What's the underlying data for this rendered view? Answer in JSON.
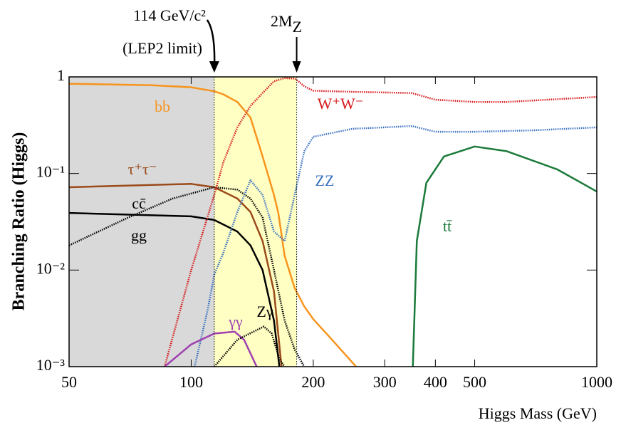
{
  "chart_data": {
    "type": "line",
    "xlabel": "Higgs Mass (GeV)",
    "ylabel": "Branching Ratio (Higgs)",
    "xscale": "log",
    "yscale": "log",
    "xlim": [
      50,
      1000
    ],
    "ylim": [
      0.001,
      1
    ],
    "xticks": [
      50,
      100,
      200,
      300,
      400,
      500,
      1000
    ],
    "yticks": [
      {
        "value": 1,
        "label": "1"
      },
      {
        "value": 0.1,
        "label": "10⁻¹"
      },
      {
        "value": 0.01,
        "label": "10⁻²"
      },
      {
        "value": 0.001,
        "label": "10⁻³"
      }
    ],
    "regions": [
      {
        "x": [
          50,
          114
        ],
        "color": "#d9d9d9"
      },
      {
        "x": [
          114,
          182
        ],
        "color": "#ffffc4"
      }
    ],
    "annotations": [
      {
        "lines": [
          "114 GeV/c²",
          "(LEP2 limit)"
        ],
        "x": 114
      },
      {
        "text": "2M",
        "subscript": "Z",
        "x": 182
      }
    ],
    "series": [
      {
        "name": "bb",
        "color": "#f7941d",
        "dash": "solid",
        "x": [
          50,
          80,
          100,
          114,
          120,
          130,
          140,
          150,
          160,
          164,
          170,
          180,
          190,
          200,
          220,
          255
        ],
        "values": [
          0.85,
          0.82,
          0.78,
          0.71,
          0.66,
          0.55,
          0.38,
          0.15,
          0.06,
          0.039,
          0.014,
          0.0065,
          0.0042,
          0.0031,
          0.002,
          0.001
        ]
      },
      {
        "name": "τ⁺τ⁻",
        "color": "#9b4a1a",
        "dash": "solid",
        "x": [
          50,
          100,
          114,
          130,
          140,
          150,
          160,
          167
        ],
        "values": [
          0.072,
          0.078,
          0.072,
          0.055,
          0.04,
          0.02,
          0.006,
          0.001
        ]
      },
      {
        "name": "cc̄",
        "color": "#000000",
        "dash": "solid",
        "x": [
          50,
          100,
          114,
          130,
          140,
          150,
          160,
          165
        ],
        "values": [
          0.039,
          0.036,
          0.033,
          0.025,
          0.018,
          0.01,
          0.003,
          0.001
        ]
      },
      {
        "name": "gg",
        "color": "#000000",
        "dash": "dotted",
        "x": [
          50,
          70,
          90,
          114,
          130,
          140,
          150,
          160,
          170,
          180,
          190
        ],
        "values": [
          0.018,
          0.035,
          0.055,
          0.072,
          0.068,
          0.055,
          0.035,
          0.01,
          0.003,
          0.0015,
          0.001
        ]
      },
      {
        "name": "W⁺W⁻",
        "color": "#d7191c",
        "dash": "dotted",
        "x": [
          86,
          100,
          114,
          120,
          130,
          140,
          150,
          160,
          170,
          180,
          182,
          190,
          200,
          250,
          300,
          350,
          400,
          500,
          600,
          700,
          1000
        ],
        "values": [
          0.001,
          0.01,
          0.06,
          0.13,
          0.3,
          0.5,
          0.68,
          0.9,
          0.97,
          0.96,
          0.93,
          0.8,
          0.72,
          0.7,
          0.69,
          0.68,
          0.58,
          0.55,
          0.55,
          0.57,
          0.62
        ]
      },
      {
        "name": "ZZ",
        "color": "#3b72c0",
        "dash": "dotted",
        "x": [
          102,
          110,
          114,
          120,
          130,
          140,
          150,
          160,
          170,
          180,
          190,
          200,
          250,
          300,
          350,
          400,
          500,
          700,
          1000
        ],
        "values": [
          0.001,
          0.004,
          0.009,
          0.015,
          0.04,
          0.085,
          0.06,
          0.025,
          0.02,
          0.06,
          0.17,
          0.24,
          0.29,
          0.3,
          0.31,
          0.27,
          0.27,
          0.28,
          0.3
        ]
      },
      {
        "name": "tt̄",
        "color": "#1a7a3a",
        "dash": "solid",
        "x": [
          352,
          360,
          380,
          420,
          500,
          600,
          800,
          1000
        ],
        "values": [
          0.001,
          0.02,
          0.08,
          0.15,
          0.19,
          0.17,
          0.11,
          0.065
        ]
      },
      {
        "name": "γγ",
        "color": "#a040b0",
        "dash": "solid",
        "x": [
          86,
          100,
          114,
          128,
          135,
          145
        ],
        "values": [
          0.001,
          0.0017,
          0.0022,
          0.0023,
          0.0019,
          0.001
        ]
      },
      {
        "name": "Zγ",
        "color": "#000000",
        "dash": "dotted",
        "x": [
          114,
          130,
          151,
          158,
          165,
          170
        ],
        "values": [
          0.001,
          0.0019,
          0.0026,
          0.0022,
          0.0012,
          0.001
        ]
      }
    ]
  }
}
